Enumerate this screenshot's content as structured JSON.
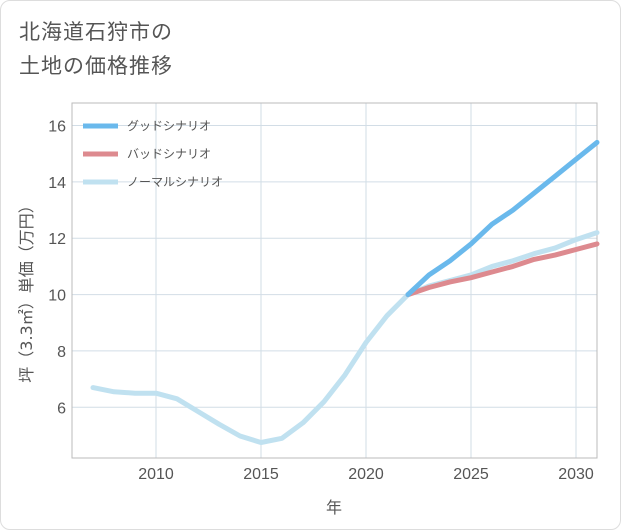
{
  "title": {
    "line1": "北海道石狩市の",
    "line2": "土地の価格推移"
  },
  "chart_data": {
    "type": "line",
    "xlabel": "年",
    "ylabel": "坪（3.3㎡）単価（万円）",
    "xlim": [
      2006,
      2031
    ],
    "ylim": [
      4.2,
      16.8
    ],
    "xticks": [
      2010,
      2015,
      2020,
      2025,
      2030
    ],
    "yticks": [
      6,
      8,
      10,
      12,
      14,
      16
    ],
    "grid": true,
    "legend_position": "top-left",
    "series": [
      {
        "name": "グッドシナリオ",
        "color": "#6ab9ec",
        "x": [
          2022,
          2023,
          2024,
          2025,
          2026,
          2027,
          2028,
          2029,
          2030,
          2031
        ],
        "y": [
          10.0,
          10.7,
          11.2,
          11.8,
          12.5,
          13.0,
          13.6,
          14.2,
          14.8,
          15.4
        ]
      },
      {
        "name": "バッドシナリオ",
        "color": "#dd8a8f",
        "x": [
          2022,
          2023,
          2024,
          2025,
          2026,
          2027,
          2028,
          2029,
          2030,
          2031
        ],
        "y": [
          10.0,
          10.25,
          10.45,
          10.6,
          10.8,
          11.0,
          11.25,
          11.4,
          11.6,
          11.8
        ]
      },
      {
        "name": "ノーマルシナリオ",
        "color": "#c0e1f0",
        "x": [
          2007,
          2008,
          2009,
          2010,
          2011,
          2012,
          2013,
          2014,
          2015,
          2016,
          2017,
          2018,
          2019,
          2020,
          2021,
          2022,
          2023,
          2024,
          2025,
          2026,
          2027,
          2028,
          2029,
          2030,
          2031
        ],
        "y": [
          6.7,
          6.55,
          6.5,
          6.5,
          6.3,
          5.85,
          5.4,
          4.98,
          4.75,
          4.9,
          5.45,
          6.2,
          7.15,
          8.3,
          9.25,
          10.0,
          10.3,
          10.5,
          10.7,
          11.0,
          11.2,
          11.45,
          11.65,
          11.95,
          12.2
        ]
      }
    ]
  }
}
